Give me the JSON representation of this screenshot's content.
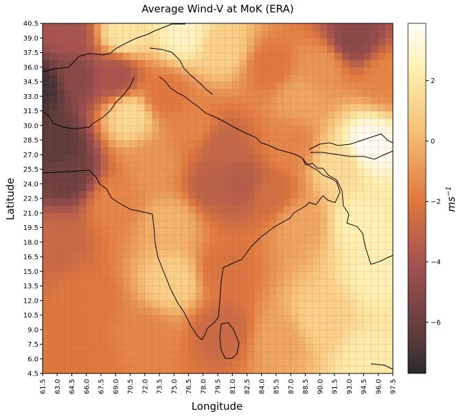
{
  "title": "Average Wind-V at MoK (ERA)",
  "chart_data": {
    "type": "heatmap",
    "title": "Average Wind-V at MoK (ERA)",
    "xlabel": "Longitude",
    "ylabel": "Latitude",
    "xlim": [
      61.5,
      97.5
    ],
    "ylim": [
      4.5,
      40.5
    ],
    "x_ticks": [
      "61.5",
      "63.0",
      "64.5",
      "66.0",
      "67.5",
      "69.0",
      "70.5",
      "72.0",
      "73.5",
      "75.0",
      "76.5",
      "78.0",
      "79.5",
      "81.0",
      "82.5",
      "84.0",
      "85.5",
      "87.0",
      "88.5",
      "90.0",
      "91.5",
      "93.0",
      "94.5",
      "96.0",
      "97.5"
    ],
    "y_ticks": [
      "4.5",
      "6.0",
      "7.5",
      "9.0",
      "10.5",
      "12.0",
      "13.5",
      "15.0",
      "16.5",
      "18.0",
      "19.5",
      "21.0",
      "22.5",
      "24.0",
      "25.5",
      "27.0",
      "28.5",
      "30.0",
      "31.5",
      "33.0",
      "34.5",
      "36.0",
      "37.5",
      "39.0",
      "40.5"
    ],
    "colorbar": {
      "label": "ms^-1",
      "min": -7.7,
      "max": 3.9,
      "ticks": [
        "2",
        "0",
        "−2",
        "−4",
        "−6"
      ],
      "tick_values": [
        2,
        0,
        -2,
        -4,
        -6
      ],
      "colormap": "afmhot"
    },
    "field_anchors": [
      {
        "lon": 61.5,
        "lat": 34,
        "v": -7.2
      },
      {
        "lon": 63,
        "lat": 28,
        "v": -6.5
      },
      {
        "lon": 64,
        "lat": 25,
        "v": -6.0
      },
      {
        "lon": 65,
        "lat": 35,
        "v": -5.0
      },
      {
        "lon": 64,
        "lat": 39.5,
        "v": -4.0
      },
      {
        "lon": 63,
        "lat": 18,
        "v": -2.8
      },
      {
        "lon": 66,
        "lat": 12,
        "v": -2.0
      },
      {
        "lon": 69,
        "lat": 35,
        "v": -4.0
      },
      {
        "lon": 70.5,
        "lat": 31,
        "v": 1.5
      },
      {
        "lon": 73,
        "lat": 26,
        "v": -1.0
      },
      {
        "lon": 74.5,
        "lat": 20,
        "v": 0.0
      },
      {
        "lon": 75,
        "lat": 14,
        "v": 1.0
      },
      {
        "lon": 74,
        "lat": 33,
        "v": -2.0
      },
      {
        "lon": 79,
        "lat": 24,
        "v": -3.3
      },
      {
        "lon": 82,
        "lat": 24,
        "v": -3.5
      },
      {
        "lon": 80,
        "lat": 28,
        "v": -3.0
      },
      {
        "lon": 85,
        "lat": 23,
        "v": -2.5
      },
      {
        "lon": 80,
        "lat": 15,
        "v": -2.2
      },
      {
        "lon": 80,
        "lat": 9,
        "v": -2.8
      },
      {
        "lon": 88,
        "lat": 20,
        "v": -0.5
      },
      {
        "lon": 90,
        "lat": 10,
        "v": 1.0
      },
      {
        "lon": 95,
        "lat": 6,
        "v": 2.2
      },
      {
        "lon": 94,
        "lat": 20,
        "v": 2.5
      },
      {
        "lon": 92,
        "lat": 26,
        "v": 1.5
      },
      {
        "lon": 95,
        "lat": 28,
        "v": 3.7
      },
      {
        "lon": 87,
        "lat": 28,
        "v": -1.5
      },
      {
        "lon": 88,
        "lat": 33,
        "v": -0.5
      },
      {
        "lon": 85,
        "lat": 36,
        "v": -2.0
      },
      {
        "lon": 93.5,
        "lat": 39,
        "v": -5.0
      },
      {
        "lon": 80,
        "lat": 38,
        "v": 1.0
      },
      {
        "lon": 76,
        "lat": 39.5,
        "v": 2.8
      },
      {
        "lon": 70,
        "lat": 39.5,
        "v": 2.0
      },
      {
        "lon": 97,
        "lat": 35,
        "v": -1.5
      },
      {
        "lon": 66,
        "lat": 6,
        "v": -2.0
      },
      {
        "lon": 72,
        "lat": 8,
        "v": -1.5
      },
      {
        "lon": 86,
        "lat": 8,
        "v": -0.5
      },
      {
        "lon": 96,
        "lat": 15,
        "v": 2.5
      },
      {
        "lon": 69,
        "lat": 22,
        "v": -1.5
      },
      {
        "lon": 77,
        "lat": 30,
        "v": -1.5
      },
      {
        "lon": 90,
        "lat": 36,
        "v": -1.0
      }
    ]
  }
}
